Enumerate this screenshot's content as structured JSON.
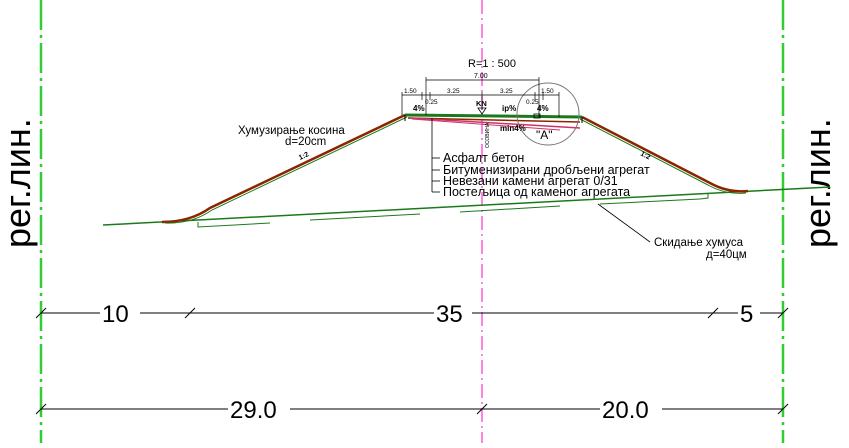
{
  "scale": "R=1 : 500",
  "reg_line_label": "рег.лин.",
  "top_dims": {
    "total": "7.00",
    "left_shoulder": "1.50",
    "left_lane": "3.25",
    "right_lane": "3.25",
    "right_shoulder": "1.50",
    "left_edge": "0.25",
    "right_edge": "0.25"
  },
  "slope_marks": {
    "left_crossfall": "4%",
    "right_crossfall": "4%",
    "axis_label": "KN",
    "ip": "ip%",
    "min": "min4%",
    "left_embankment": "1:2",
    "right_embankment": "1:2",
    "vertical_note": "ОСОВИНА"
  },
  "detail_label": "\"A\"",
  "topsoil_slopes": {
    "line1": "Хумузирање косина",
    "line2": "d=20cm"
  },
  "layers": [
    "Асфалт бетон",
    "Битуменизирани дробљени агрегат",
    "Невезани камени агрегат 0/31",
    "Постељица од каменог агрегата"
  ],
  "stripping": {
    "line1": "Скидање хумуса",
    "line2": "д=40цм"
  },
  "dim_row1": [
    "10",
    "35",
    "5"
  ],
  "dim_row2": [
    "29.0",
    "20.0"
  ],
  "colors": {
    "reg_line": "#33cc33",
    "axis": "#ff33cc",
    "ground": "#1a7a1a",
    "embankment": "#8b2500",
    "pavement": "#cc3366",
    "text": "#000000"
  }
}
